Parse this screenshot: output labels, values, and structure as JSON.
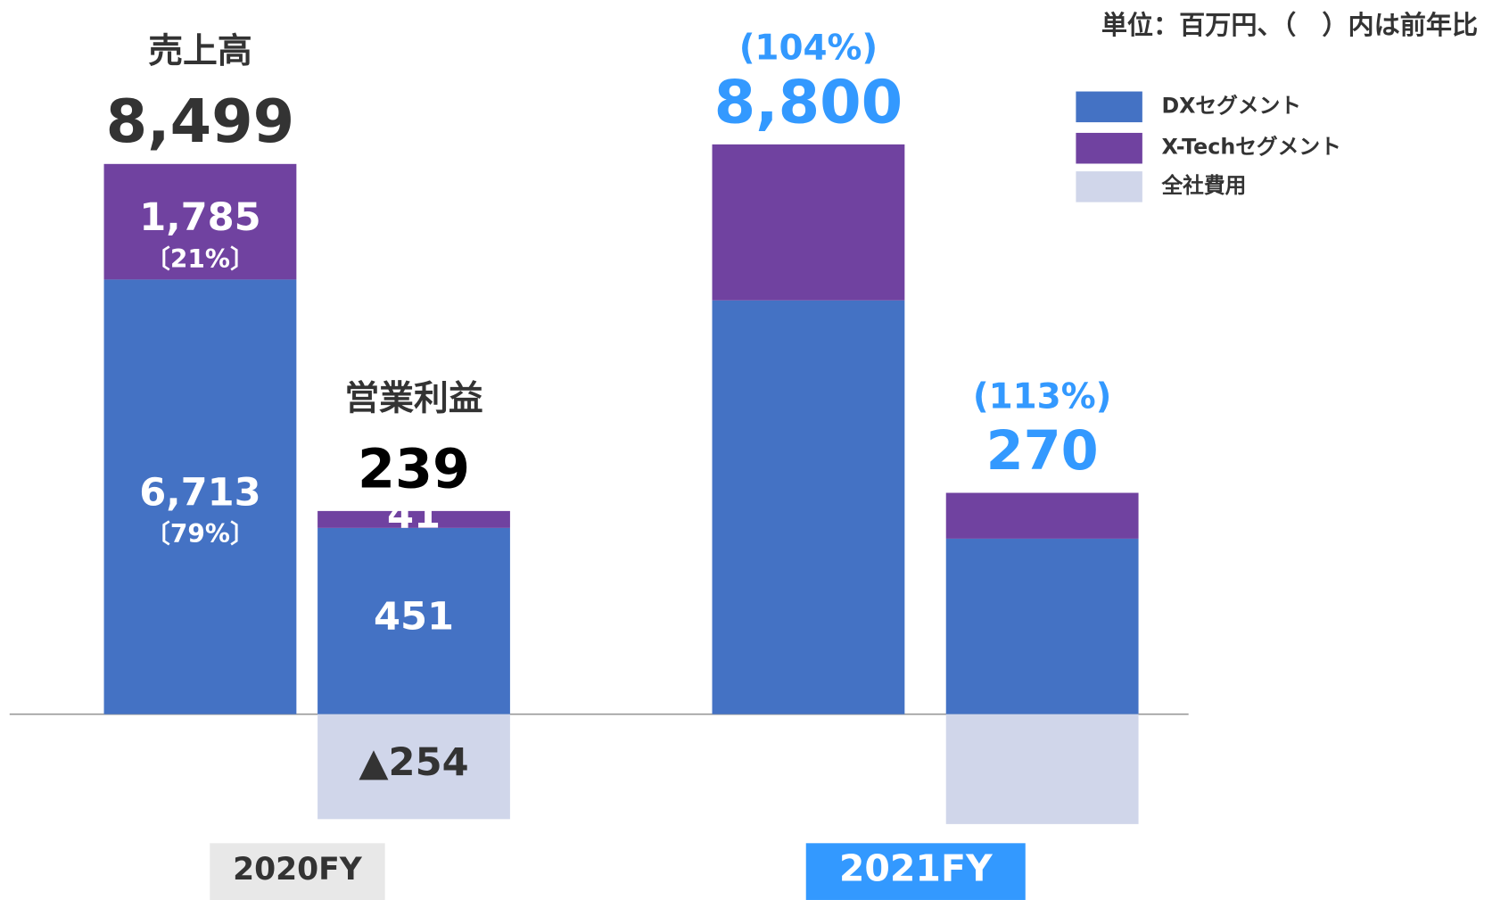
{
  "chart_data": {
    "type": "stacked_bar",
    "unit_note": "単位：百万円、（　）内は前年比",
    "categories": [
      "2020FY",
      "2021FY"
    ],
    "series": [
      {
        "name": "DXセグメント",
        "color": "#4472c4"
      },
      {
        "name": "X-Techセグメント",
        "color": "#7042a0"
      },
      {
        "name": "全社費用",
        "color": "#d0d6ea"
      }
    ],
    "measures": [
      {
        "title": "売上高",
        "totals": [
          8499,
          8800
        ],
        "total_labels": [
          "8,499",
          "8,800"
        ],
        "growth_labels": [
          null,
          "(104%)"
        ],
        "segments": [
          {
            "values": [
              6713,
              6391
            ],
            "value_labels": [
              "6,713",
              null
            ],
            "share_labels": [
              "〔79%〕",
              null
            ]
          },
          {
            "values": [
              1785,
              2409
            ],
            "value_labels": [
              "1,785",
              null
            ],
            "share_labels": [
              "〔21%〕",
              null
            ]
          }
        ]
      },
      {
        "title": "営業利益",
        "totals": [
          239,
          270
        ],
        "growth_labels": [
          null,
          "(113%)"
        ],
        "segments": [
          {
            "values": [
              451,
              425
            ]
          },
          {
            "values": [
              41,
              111
            ]
          },
          {
            "values": [
              -254,
              -266
            ],
            "value_labels": [
              "▲254",
              null
            ]
          }
        ]
      }
    ]
  }
}
